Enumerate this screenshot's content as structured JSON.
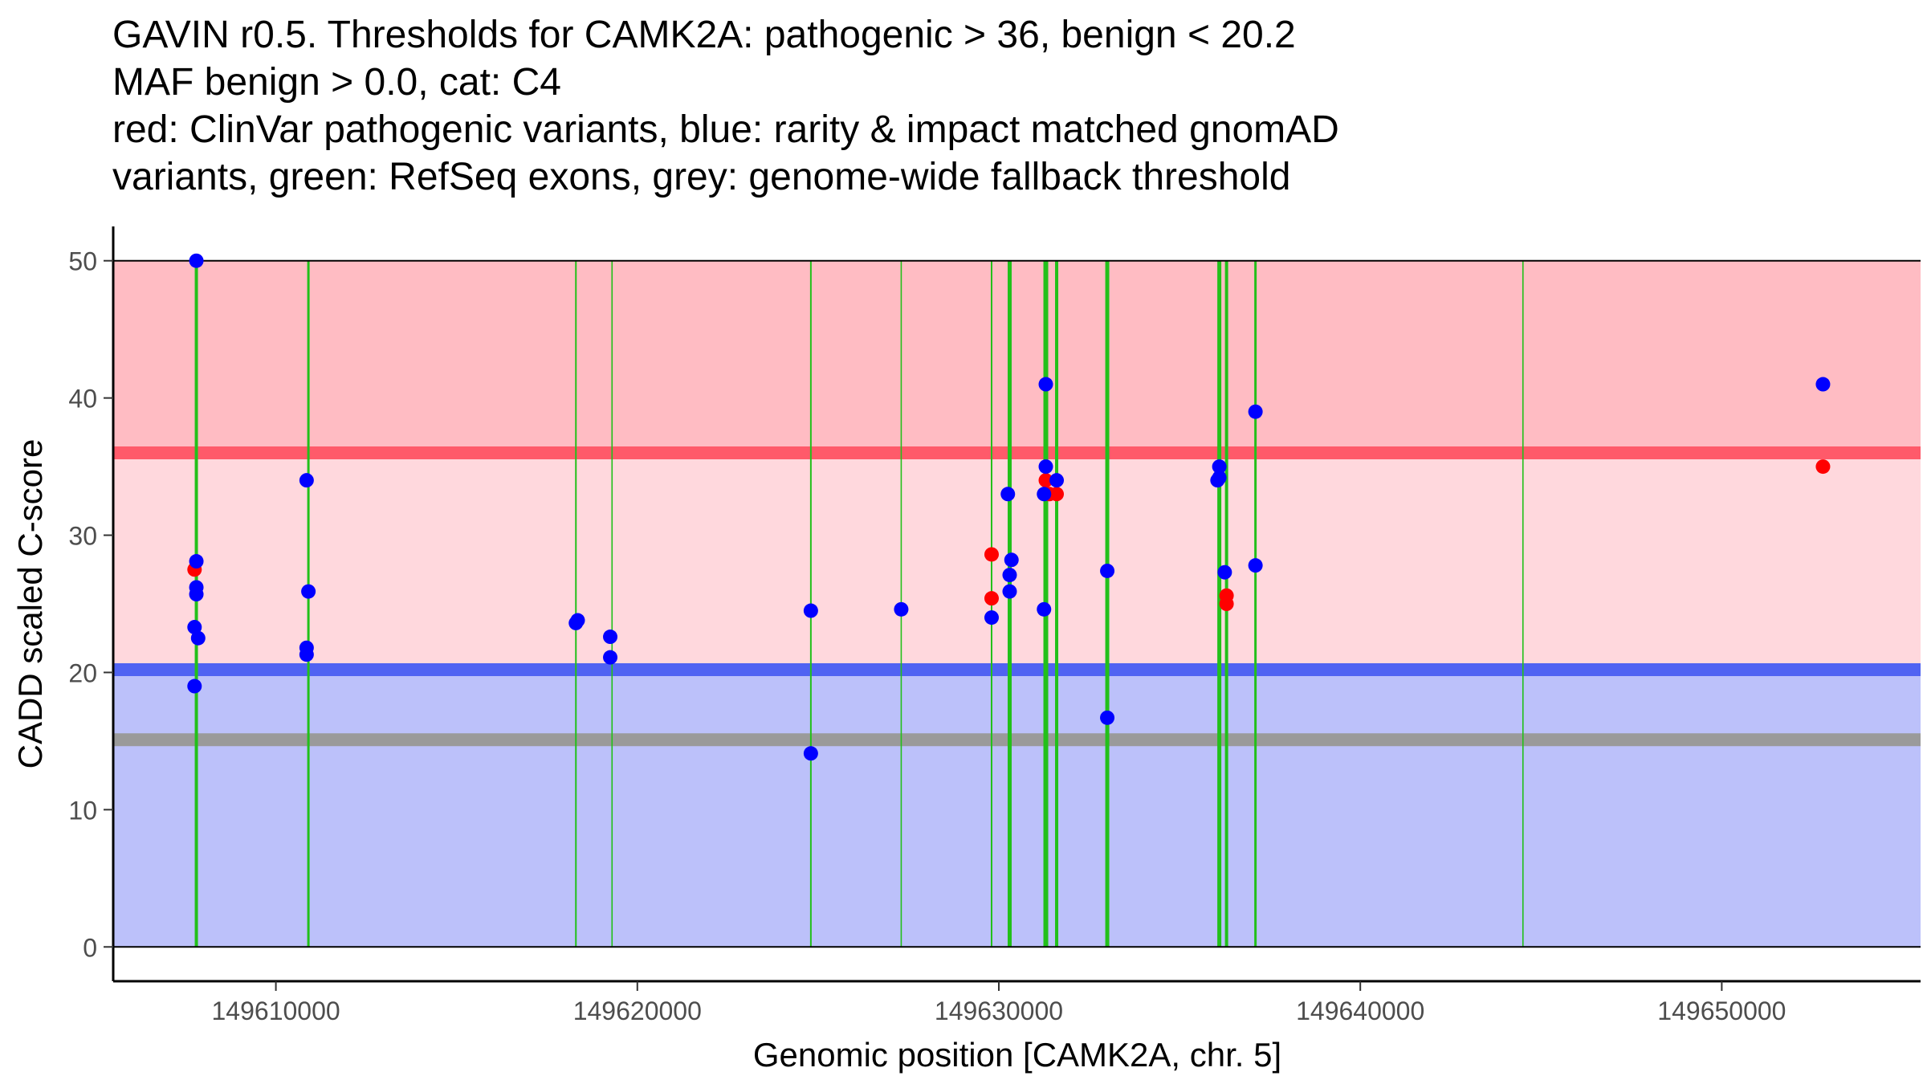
{
  "chart_data": {
    "type": "scatter",
    "title_lines": [
      "GAVIN r0.5. Thresholds for CAMK2A: pathogenic > 36, benign < 20.2",
      "MAF benign > 0.0, cat: C4",
      "red: ClinVar pathogenic variants, blue: rarity & impact matched gnomAD",
      "variants, green: RefSeq exons, grey: genome-wide fallback threshold"
    ],
    "xlabel": "Genomic position [CAMK2A, chr. 5]",
    "ylabel": "CADD scaled C-score",
    "xlim": [
      149605500,
      149655500
    ],
    "ylim": [
      -2.5,
      52.5
    ],
    "x_ticks": [
      149610000,
      149620000,
      149630000,
      149640000,
      149650000
    ],
    "x_tick_labels": [
      "149610000",
      "149620000",
      "149630000",
      "149640000",
      "149650000"
    ],
    "y_ticks": [
      0,
      10,
      20,
      30,
      40,
      50
    ],
    "y_tick_labels": [
      "0",
      "10",
      "20",
      "30",
      "40",
      "50"
    ],
    "regions": [
      {
        "name": "pathogenic-zone",
        "ymin": 36,
        "ymax": 50,
        "color": "#ffbcc3"
      },
      {
        "name": "uncertain-zone",
        "ymin": 20.2,
        "ymax": 36,
        "color": "#ffd8dd"
      },
      {
        "name": "benign-zone",
        "ymin": 0,
        "ymax": 20.2,
        "color": "#bcc1fa"
      }
    ],
    "thresholds": [
      {
        "name": "pathogenic-threshold",
        "y": 36,
        "color": "#ff5a6a"
      },
      {
        "name": "benign-threshold",
        "y": 20.2,
        "color": "#5063f2"
      },
      {
        "name": "genome-wide-fallback-threshold",
        "y": 15.1,
        "color": "#9a9a9a"
      }
    ],
    "exons": {
      "color": "#22c01a",
      "x": [
        149607800,
        149610900,
        149618300,
        149619300,
        149624800,
        149627300,
        149629800,
        149630300,
        149631300,
        149631600,
        149633000,
        149636100,
        149636300,
        149637100,
        149644500
      ]
    },
    "series": [
      {
        "name": "ClinVar pathogenic variants",
        "color": "#ff0000",
        "points": [
          {
            "x": 149607750,
            "y": 27.5
          },
          {
            "x": 149629800,
            "y": 28.6
          },
          {
            "x": 149629800,
            "y": 25.4
          },
          {
            "x": 149631300,
            "y": 34.0
          },
          {
            "x": 149631400,
            "y": 33.0
          },
          {
            "x": 149631600,
            "y": 33.0
          },
          {
            "x": 149636300,
            "y": 25.6
          },
          {
            "x": 149636300,
            "y": 25.0
          },
          {
            "x": 149652800,
            "y": 35.0
          }
        ]
      },
      {
        "name": "rarity & impact matched gnomAD variants",
        "color": "#0000ff",
        "points": [
          {
            "x": 149607800,
            "y": 50.0
          },
          {
            "x": 149607800,
            "y": 28.1
          },
          {
            "x": 149607800,
            "y": 26.2
          },
          {
            "x": 149607800,
            "y": 25.7
          },
          {
            "x": 149607750,
            "y": 23.3
          },
          {
            "x": 149607850,
            "y": 22.5
          },
          {
            "x": 149607750,
            "y": 19.0
          },
          {
            "x": 149610850,
            "y": 34.0
          },
          {
            "x": 149610900,
            "y": 25.9
          },
          {
            "x": 149610850,
            "y": 21.8
          },
          {
            "x": 149610850,
            "y": 21.3
          },
          {
            "x": 149618300,
            "y": 23.6
          },
          {
            "x": 149618350,
            "y": 23.8
          },
          {
            "x": 149619250,
            "y": 22.6
          },
          {
            "x": 149619250,
            "y": 21.1
          },
          {
            "x": 149624800,
            "y": 24.5
          },
          {
            "x": 149624800,
            "y": 14.1
          },
          {
            "x": 149627300,
            "y": 24.6
          },
          {
            "x": 149629800,
            "y": 24.0
          },
          {
            "x": 149630250,
            "y": 33.0
          },
          {
            "x": 149630300,
            "y": 27.1
          },
          {
            "x": 149630350,
            "y": 28.2
          },
          {
            "x": 149630300,
            "y": 25.9
          },
          {
            "x": 149631300,
            "y": 41.0
          },
          {
            "x": 149631300,
            "y": 35.0
          },
          {
            "x": 149631250,
            "y": 33.0
          },
          {
            "x": 149631600,
            "y": 34.0
          },
          {
            "x": 149631250,
            "y": 24.6
          },
          {
            "x": 149633000,
            "y": 27.4
          },
          {
            "x": 149633000,
            "y": 16.7
          },
          {
            "x": 149636100,
            "y": 35.0
          },
          {
            "x": 149636100,
            "y": 34.2
          },
          {
            "x": 149636050,
            "y": 34.0
          },
          {
            "x": 149636250,
            "y": 27.3
          },
          {
            "x": 149637100,
            "y": 39.0
          },
          {
            "x": 149637100,
            "y": 27.8
          },
          {
            "x": 149652800,
            "y": 41.0
          }
        ]
      }
    ]
  }
}
